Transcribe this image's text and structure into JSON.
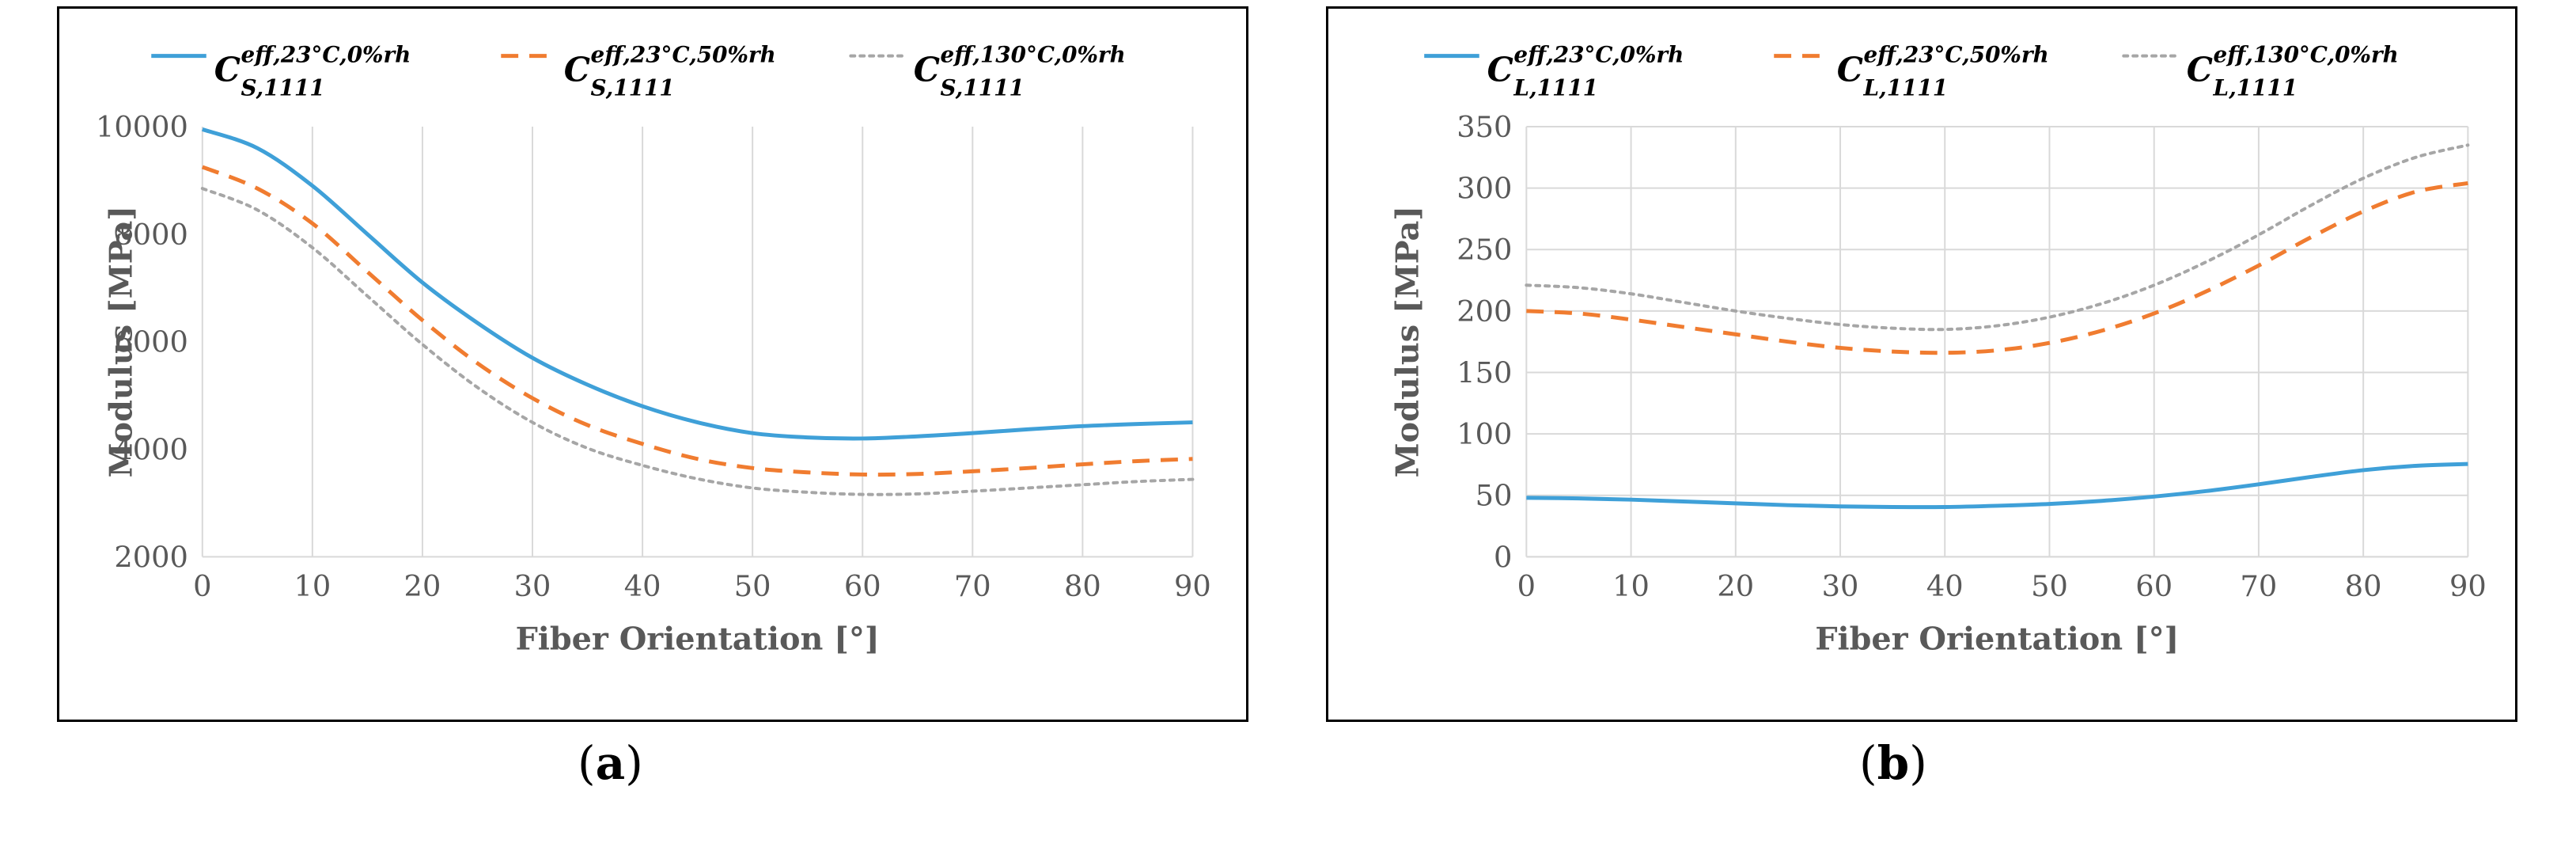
{
  "chart_data": [
    {
      "type": "line",
      "panel": "a",
      "caption": {
        "open": "(",
        "letter": "a",
        "close": ")"
      },
      "xlabel": "Fiber Orientation [°]",
      "ylabel": "Modulus [MPa]",
      "xlim": [
        0,
        90
      ],
      "ylim": [
        2000,
        10000
      ],
      "xticks": [
        0,
        10,
        20,
        30,
        40,
        50,
        60,
        70,
        80,
        90
      ],
      "yticks": [
        2000,
        4000,
        6000,
        8000,
        10000
      ],
      "grid": "vertical",
      "x": [
        0,
        5,
        10,
        15,
        20,
        25,
        30,
        35,
        40,
        45,
        50,
        55,
        60,
        65,
        70,
        75,
        80,
        85,
        90
      ],
      "series": [
        {
          "name": "C_S,1111^eff,23°C,0%rh",
          "main": "C",
          "sup": "eff,23°C,0%rh",
          "sub": "S,1111",
          "color": "#3fa0d8",
          "style": "solid",
          "values": [
            9950,
            9600,
            8900,
            8000,
            7100,
            6350,
            5700,
            5200,
            4800,
            4500,
            4300,
            4220,
            4200,
            4240,
            4300,
            4370,
            4430,
            4470,
            4500
          ]
        },
        {
          "name": "C_S,1111^eff,23°C,50%rh",
          "main": "C",
          "sup": "eff,23°C,50%rh",
          "sub": "S,1111",
          "color": "#f07c30",
          "style": "dashed",
          "values": [
            9250,
            8850,
            8200,
            7300,
            6400,
            5600,
            4950,
            4450,
            4100,
            3820,
            3650,
            3570,
            3530,
            3540,
            3590,
            3650,
            3720,
            3780,
            3820
          ]
        },
        {
          "name": "C_S,1111^eff,130°C,0%rh",
          "main": "C",
          "sup": "eff,130°C,0%rh",
          "sub": "S,1111",
          "color": "#a6a6a6",
          "style": "dotted",
          "values": [
            8850,
            8450,
            7750,
            6850,
            5950,
            5150,
            4500,
            4020,
            3700,
            3450,
            3280,
            3200,
            3160,
            3170,
            3220,
            3280,
            3340,
            3400,
            3440
          ]
        }
      ]
    },
    {
      "type": "line",
      "panel": "b",
      "caption": {
        "open": "(",
        "letter": "b",
        "close": ")"
      },
      "xlabel": "Fiber Orientation [°]",
      "ylabel": "Modulus [MPa]",
      "xlim": [
        0,
        90
      ],
      "ylim": [
        0,
        350
      ],
      "xticks": [
        0,
        10,
        20,
        30,
        40,
        50,
        60,
        70,
        80,
        90
      ],
      "yticks": [
        0,
        50,
        100,
        150,
        200,
        250,
        300,
        350
      ],
      "grid": "both",
      "x": [
        0,
        5,
        10,
        15,
        20,
        25,
        30,
        35,
        40,
        45,
        50,
        55,
        60,
        65,
        70,
        75,
        80,
        85,
        90
      ],
      "series": [
        {
          "name": "C_L,1111^eff,23°C,0%rh",
          "main": "C",
          "sup": "eff,23°C,0%rh",
          "sub": "L,1111",
          "color": "#3fa0d8",
          "style": "solid",
          "values": [
            48,
            47.5,
            46.5,
            45,
            43.5,
            42,
            41,
            40.5,
            40.5,
            41.5,
            43,
            45.5,
            49,
            53.5,
            59,
            65,
            70.5,
            74,
            75.5
          ]
        },
        {
          "name": "C_L,1111^eff,23°C,50%rh",
          "main": "C",
          "sup": "eff,23°C,50%rh",
          "sub": "L,1111",
          "color": "#f07c30",
          "style": "dashed",
          "values": [
            200,
            198,
            193,
            187,
            181,
            175,
            170,
            167,
            166,
            168,
            174,
            184,
            198,
            216,
            237,
            260,
            281,
            297,
            304
          ]
        },
        {
          "name": "C_L,1111^eff,130°C,0%rh",
          "main": "C",
          "sup": "eff,130°C,0%rh",
          "sub": "L,1111",
          "color": "#a6a6a6",
          "style": "dotted",
          "values": [
            221,
            219,
            214,
            207,
            200,
            194,
            189,
            186,
            185,
            188,
            195,
            206,
            221,
            240,
            262,
            286,
            308,
            325,
            335
          ]
        }
      ]
    }
  ]
}
